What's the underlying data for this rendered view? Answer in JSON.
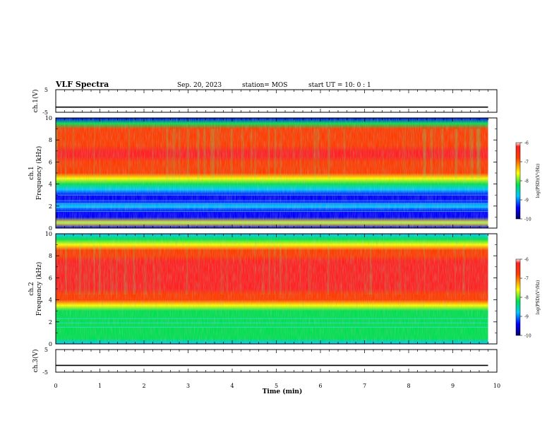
{
  "header": {
    "title": "VLF Spectra",
    "date": "Sep. 20, 2023",
    "station": "station= MOS",
    "start": "start  UT =   10: 0  : 1"
  },
  "chart_data": [
    {
      "type": "line",
      "panel": "ch1_voltage",
      "ylabel": "ch.1(V)",
      "ylim": [
        -5,
        5
      ],
      "yticks": [
        5,
        -5
      ],
      "series": [
        {
          "x": [
            0,
            9.8
          ],
          "values": [
            -2.7,
            -2.7
          ]
        }
      ]
    },
    {
      "type": "heatmap",
      "panel": "ch1_spectrogram",
      "ylabel": "ch.1\nFrequency (kHz)",
      "ylim": [
        0,
        10
      ],
      "yticks": [
        0,
        2,
        4,
        6,
        8,
        10
      ],
      "xlim": [
        0,
        10
      ],
      "data_end_min": 9.8,
      "colorbar": {
        "label": "log(PSD)(V²/Hz)",
        "range": [
          -10,
          -6
        ],
        "ticks": [
          -6,
          -7,
          -8,
          -9,
          -10
        ]
      },
      "profile": {
        "freqs_khz": [
          0,
          0.5,
          1,
          1.5,
          2,
          2.5,
          3,
          3.5,
          4,
          4.5,
          5,
          5.5,
          6,
          6.5,
          7,
          7.5,
          8,
          8.5,
          9,
          9.5,
          10
        ],
        "log_psd": [
          -9.7,
          -8.2,
          -9.6,
          -9.5,
          -9.3,
          -9.6,
          -9.4,
          -9.1,
          -8.6,
          -7.9,
          -7.3,
          -6.9,
          -6.8,
          -6.7,
          -6.7,
          -6.8,
          -6.9,
          -7.1,
          -7.6,
          -8.6,
          -9.5
        ]
      },
      "line_freqs_khz": [
        0.5,
        1.5,
        1.9,
        2.2,
        2.5,
        3.0
      ]
    },
    {
      "type": "heatmap",
      "panel": "ch2_spectrogram",
      "ylabel": "ch.2\nFrequency (kHz)",
      "ylim": [
        0,
        10
      ],
      "yticks": [
        0,
        2,
        4,
        6,
        8,
        10
      ],
      "xlim": [
        0,
        10
      ],
      "data_end_min": 9.8,
      "colorbar": {
        "label": "log(PSD)(V²/Hz)",
        "range": [
          -10,
          -6
        ],
        "ticks": [
          -6,
          -7,
          -8,
          -9,
          -10
        ]
      },
      "profile": {
        "freqs_khz": [
          0,
          0.5,
          1,
          1.5,
          2,
          2.5,
          3,
          3.5,
          4,
          4.5,
          5,
          5.5,
          6,
          6.5,
          7,
          7.5,
          8,
          8.5,
          9,
          9.5,
          10
        ],
        "log_psd": [
          -8.8,
          -8.3,
          -8.5,
          -8.6,
          -8.7,
          -8.6,
          -8.5,
          -8.2,
          -7.5,
          -6.9,
          -6.5,
          -6.3,
          -6.2,
          -6.2,
          -6.3,
          -6.5,
          -6.9,
          -7.5,
          -8.1,
          -8.6,
          -9.2
        ]
      },
      "line_freqs_khz": [
        1.5,
        1.9,
        2.3
      ]
    },
    {
      "type": "line",
      "panel": "ch3_voltage",
      "ylabel": "ch.3(V)",
      "ylim": [
        -5,
        5
      ],
      "yticks": [
        5,
        -5
      ],
      "series": [
        {
          "x": [
            0,
            9.8
          ],
          "values": [
            -2.0,
            -2.0
          ]
        }
      ]
    }
  ],
  "xaxis": {
    "label": "Time  (min)",
    "ticks": [
      "0",
      "1",
      "2",
      "3",
      "4",
      "5",
      "6",
      "7",
      "8",
      "9",
      "10"
    ]
  }
}
